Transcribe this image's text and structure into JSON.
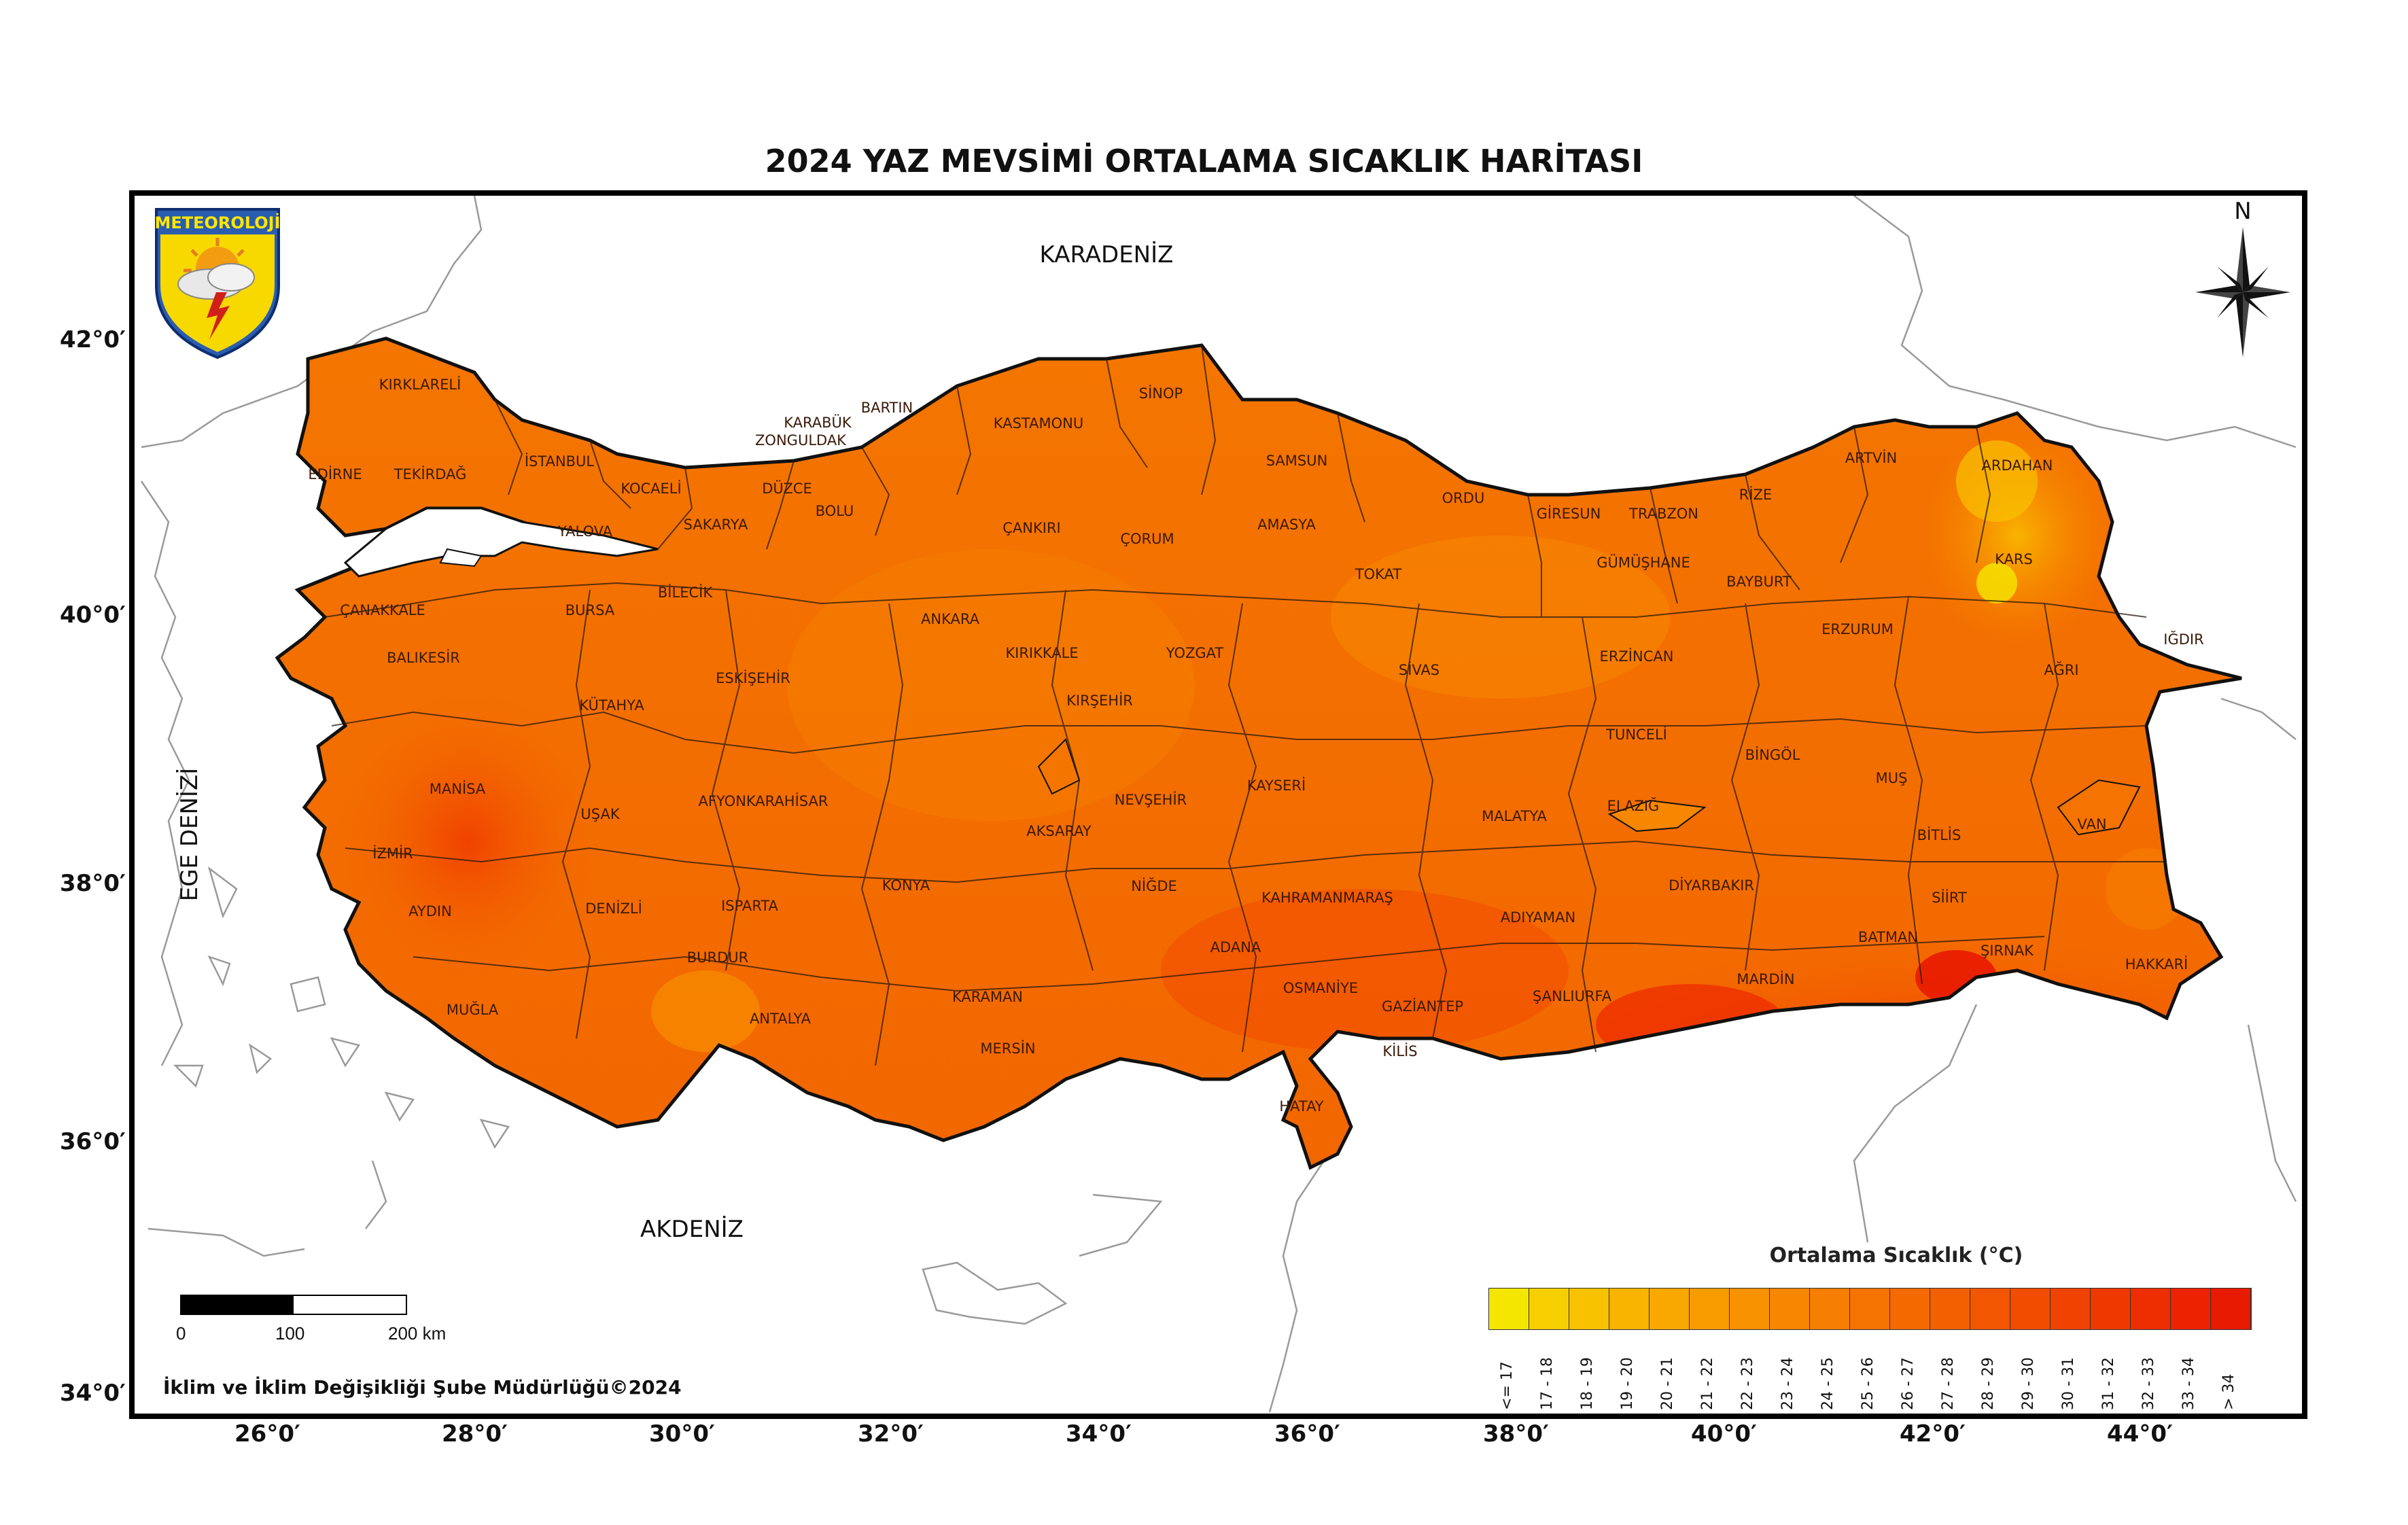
{
  "title": "2024 YAZ MEVSİMİ ORTALAMA SICAKLIK HARİTASI",
  "logo_text": "METEOROLOJİ",
  "north_label": "N",
  "seas": {
    "north": "KARADENİZ",
    "south": "AKDENİZ",
    "west": "EGE DENİZİ"
  },
  "lat_labels": [
    "42°0′",
    "40°0′",
    "38°0′",
    "36°0′",
    "34°0′"
  ],
  "lon_labels": [
    "26°0′",
    "28°0′",
    "30°0′",
    "32°0′",
    "34°0′",
    "36°0′",
    "38°0′",
    "40°0′",
    "42°0′",
    "44°0′"
  ],
  "provinces": [
    "KIRKLARELİ",
    "EDİRNE",
    "TEKİRDAĞ",
    "İSTANBUL",
    "KOCAELİ",
    "YALOVA",
    "SAKARYA",
    "DÜZCE",
    "BOLU",
    "ZONGULDAK",
    "BARTIN",
    "KARABÜK",
    "KASTAMONU",
    "SİNOP",
    "SAMSUN",
    "ORDU",
    "GİRESUN",
    "TRABZON",
    "RİZE",
    "ARTVİN",
    "ARDAHAN",
    "KARS",
    "IĞDIR",
    "AĞRI",
    "ÇANAKKALE",
    "BALIKESİR",
    "BURSA",
    "BİLECİK",
    "ESKİŞEHİR",
    "ANKARA",
    "ÇANKIRI",
    "ÇORUM",
    "AMASYA",
    "TOKAT",
    "GÜMÜŞHANE",
    "BAYBURT",
    "ERZURUM",
    "KÜTAHYA",
    "KIRIKKALE",
    "YOZGAT",
    "SİVAS",
    "ERZİNCAN",
    "KIRŞEHİR",
    "TUNCELİ",
    "BİNGÖL",
    "MUŞ",
    "VAN",
    "BİTLİS",
    "MANİSA",
    "UŞAK",
    "AFYONKARAHİSAR",
    "AKSARAY",
    "NEVŞEHİR",
    "KAYSERİ",
    "MALATYA",
    "ELAZIĞ",
    "İZMİR",
    "AYDIN",
    "DENİZLİ",
    "ISPARTA",
    "KONYA",
    "NİĞDE",
    "KAHRAMANMARAŞ",
    "ADIYAMAN",
    "DİYARBAKIR",
    "SİİRT",
    "BATMAN",
    "ŞIRNAK",
    "HAKKARİ",
    "BURDUR",
    "MUĞLA",
    "ANTALYA",
    "KARAMAN",
    "ADANA",
    "OSMANİYE",
    "GAZİANTEP",
    "ŞANLIURFA",
    "MARDİN",
    "MERSİN",
    "KİLİS",
    "HATAY"
  ],
  "legend": {
    "title": "Ortalama Sıcaklık (°C)",
    "classes": [
      "<= 17",
      "17 - 18",
      "18 - 19",
      "19 - 20",
      "20 - 21",
      "21 - 22",
      "22 - 23",
      "23 - 24",
      "24 - 25",
      "25 - 26",
      "26 - 27",
      "27 - 28",
      "28 - 29",
      "29 - 30",
      "30 - 31",
      "31 - 32",
      "32 - 33",
      "33 - 34",
      "> 34"
    ],
    "colors": [
      "#f5e600",
      "#f7cf00",
      "#f8c200",
      "#f9b400",
      "#f9a800",
      "#f99c00",
      "#f89200",
      "#f78700",
      "#f67e00",
      "#f57300",
      "#f46a00",
      "#f36000",
      "#f25600",
      "#f14c00",
      "#f04200",
      "#ef3800",
      "#ee2e00",
      "#ed2200",
      "#e81a00"
    ]
  },
  "scale_bar": {
    "labels": [
      "0",
      "100",
      "200 km"
    ]
  },
  "credit": "İklim ve İklim Değişikliği Şube Müdürlüğü©2024"
}
